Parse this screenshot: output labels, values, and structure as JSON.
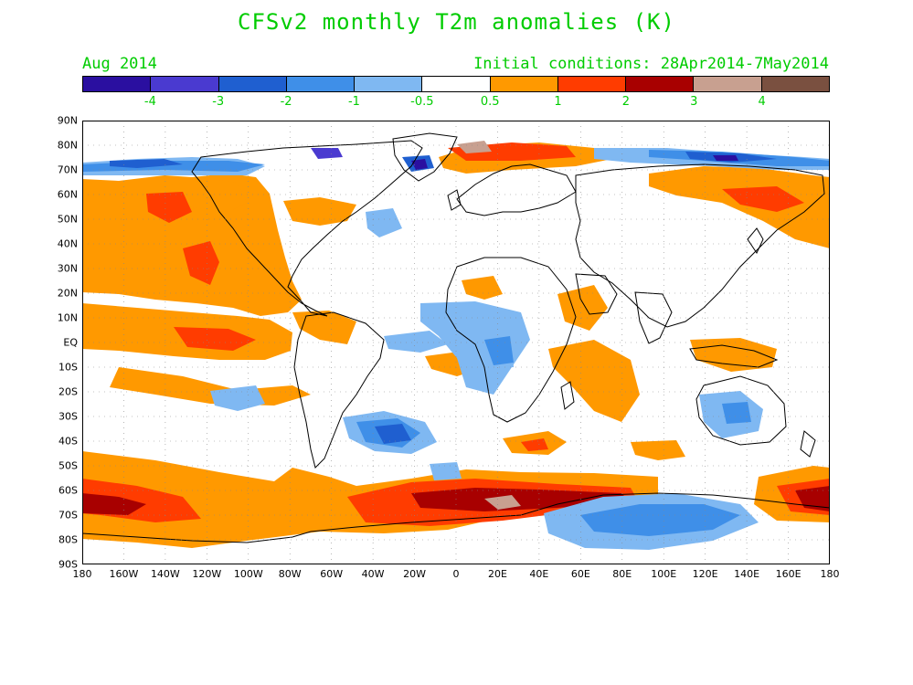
{
  "title": "CFSv2 monthly T2m anomalies (K)",
  "valid_month": "Aug 2014",
  "initial_conditions": "Initial conditions: 28Apr2014-7May2014",
  "colorbar": {
    "colors": [
      "#2a0fa0",
      "#4a3ad0",
      "#1f5fd0",
      "#3f8fe8",
      "#7fb8f2",
      "#ffffff",
      "#ff9900",
      "#ff3c00",
      "#a80000",
      "#c8a090",
      "#7a5040"
    ],
    "labels": [
      "-4",
      "-3",
      "-2",
      "-1",
      "-0.5",
      "0.5",
      "1",
      "2",
      "3",
      "4"
    ]
  },
  "lat_labels": [
    "90N",
    "80N",
    "70N",
    "60N",
    "50N",
    "40N",
    "30N",
    "20N",
    "10N",
    "EQ",
    "10S",
    "20S",
    "30S",
    "40S",
    "50S",
    "60S",
    "70S",
    "80S",
    "90S"
  ],
  "lon_labels": [
    "180",
    "160W",
    "140W",
    "120W",
    "100W",
    "80W",
    "60W",
    "40W",
    "20W",
    "0",
    "20E",
    "40E",
    "60E",
    "80E",
    "100E",
    "120E",
    "140E",
    "160E",
    "180"
  ],
  "colors": {
    "text": "#00cc00",
    "warm1": "#ff9900",
    "warm2": "#ff3c00",
    "warm3": "#a80000",
    "warm4": "#c8a090",
    "cool1": "#7fb8f2",
    "cool2": "#3f8fe8",
    "cool3": "#1f5fd0",
    "cool4": "#4a3ad0",
    "cool5": "#2a0fa0"
  }
}
